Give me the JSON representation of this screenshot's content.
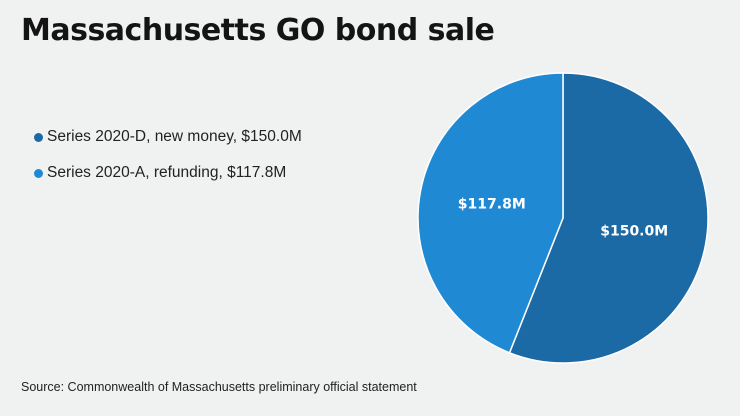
{
  "chart_data": {
    "type": "pie",
    "title": "Massachusetts GO bond sale",
    "slices": [
      {
        "legend": "Series 2020-D, new money, $150.0M",
        "label": "$150.0M",
        "value": 150.0,
        "color": "#1b6aa5"
      },
      {
        "legend": "Series 2020-A, refunding, $117.8M",
        "label": "$117.8M",
        "value": 117.8,
        "color": "#1f89d4"
      }
    ],
    "start_angle_deg": 0,
    "direction": "clockwise",
    "legend_position": "left",
    "source": "Source: Commonwealth of Massachusetts preliminary official statement"
  }
}
